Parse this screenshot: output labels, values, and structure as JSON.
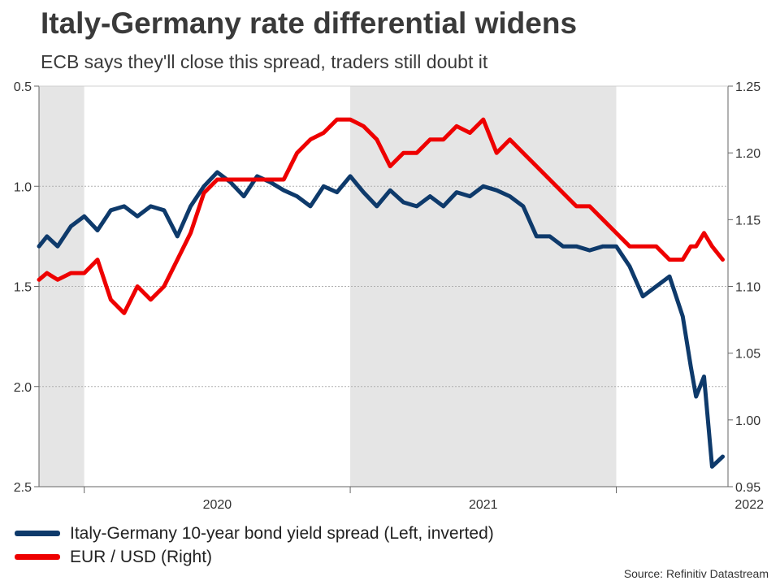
{
  "chart_data": {
    "type": "line",
    "title": "Italy-Germany rate differential widens",
    "subtitle": "ECB says they'll close this spread, traders still doubt it",
    "source": "Source: Refinitiv Datastream",
    "x_start": "2019-11",
    "x_end": "2022-06",
    "x_tick_labels": [
      {
        "label": "2020",
        "pos": 2020.5
      },
      {
        "label": "2021",
        "pos": 2021.5
      },
      {
        "label": "2022",
        "pos": 2022.5
      }
    ],
    "year_boundaries": [
      2020.0,
      2021.0,
      2022.0
    ],
    "shaded_ranges": [
      [
        2019.83,
        2020.0
      ],
      [
        2021.0,
        2022.0
      ]
    ],
    "left_axis": {
      "label": "Italy-Germany 10-year bond yield spread",
      "inverted": true,
      "ylim": [
        0.5,
        2.5
      ],
      "ticks": [
        0.5,
        1.0,
        1.5,
        2.0,
        2.5
      ],
      "tick_labels": [
        "0.5",
        "1.0",
        "1.5",
        "2.0",
        "2.5"
      ]
    },
    "right_axis": {
      "label": "EUR / USD",
      "ylim": [
        0.95,
        1.25
      ],
      "ticks": [
        0.95,
        1.0,
        1.05,
        1.1,
        1.15,
        1.2,
        1.25
      ],
      "tick_labels": [
        "0.95",
        "1.00",
        "1.05",
        "1.10",
        "1.15",
        "1.20",
        "1.25"
      ]
    },
    "series": [
      {
        "name": "Italy-Germany 10-year bond yield spread (Left, inverted)",
        "axis": "left",
        "color": "#0e3a6b",
        "x": [
          2019.83,
          2019.86,
          2019.9,
          2019.95,
          2020.0,
          2020.05,
          2020.1,
          2020.15,
          2020.2,
          2020.25,
          2020.3,
          2020.35,
          2020.4,
          2020.45,
          2020.5,
          2020.55,
          2020.6,
          2020.65,
          2020.7,
          2020.75,
          2020.8,
          2020.85,
          2020.9,
          2020.95,
          2021.0,
          2021.05,
          2021.1,
          2021.15,
          2021.2,
          2021.25,
          2021.3,
          2021.35,
          2021.4,
          2021.45,
          2021.5,
          2021.55,
          2021.6,
          2021.65,
          2021.7,
          2021.75,
          2021.8,
          2021.85,
          2021.9,
          2021.95,
          2022.0,
          2022.05,
          2022.1,
          2022.15,
          2022.2,
          2022.25,
          2022.28,
          2022.3,
          2022.33,
          2022.36,
          2022.4
        ],
        "values": [
          1.3,
          1.25,
          1.3,
          1.2,
          1.15,
          1.22,
          1.12,
          1.1,
          1.15,
          1.1,
          1.12,
          1.25,
          1.1,
          1.0,
          0.93,
          0.98,
          1.05,
          0.95,
          0.98,
          1.02,
          1.05,
          1.1,
          1.0,
          1.03,
          0.95,
          1.03,
          1.1,
          1.02,
          1.08,
          1.1,
          1.05,
          1.1,
          1.03,
          1.05,
          1.0,
          1.02,
          1.05,
          1.1,
          1.25,
          1.25,
          1.3,
          1.3,
          1.32,
          1.3,
          1.3,
          1.4,
          1.55,
          1.5,
          1.45,
          1.65,
          1.9,
          2.05,
          1.95,
          2.4,
          2.35
        ]
      },
      {
        "name": "EUR / USD (Right)",
        "axis": "right",
        "color": "#ee0000",
        "x": [
          2019.83,
          2019.86,
          2019.9,
          2019.95,
          2020.0,
          2020.05,
          2020.1,
          2020.15,
          2020.2,
          2020.25,
          2020.3,
          2020.35,
          2020.4,
          2020.45,
          2020.5,
          2020.55,
          2020.6,
          2020.65,
          2020.7,
          2020.75,
          2020.8,
          2020.85,
          2020.9,
          2020.95,
          2021.0,
          2021.05,
          2021.1,
          2021.15,
          2021.2,
          2021.25,
          2021.3,
          2021.35,
          2021.4,
          2021.45,
          2021.5,
          2021.55,
          2021.6,
          2021.65,
          2021.7,
          2021.75,
          2021.8,
          2021.85,
          2021.9,
          2021.95,
          2022.0,
          2022.05,
          2022.1,
          2022.15,
          2022.2,
          2022.25,
          2022.28,
          2022.3,
          2022.33,
          2022.36,
          2022.4
        ],
        "values": [
          1.105,
          1.11,
          1.105,
          1.11,
          1.11,
          1.12,
          1.09,
          1.08,
          1.1,
          1.09,
          1.1,
          1.12,
          1.14,
          1.17,
          1.18,
          1.18,
          1.18,
          1.18,
          1.18,
          1.18,
          1.2,
          1.21,
          1.215,
          1.225,
          1.225,
          1.22,
          1.21,
          1.19,
          1.2,
          1.2,
          1.21,
          1.21,
          1.22,
          1.215,
          1.225,
          1.2,
          1.21,
          1.2,
          1.19,
          1.18,
          1.17,
          1.16,
          1.16,
          1.15,
          1.14,
          1.13,
          1.13,
          1.13,
          1.12,
          1.12,
          1.13,
          1.13,
          1.14,
          1.13,
          1.12
        ]
      }
    ]
  },
  "legend": {
    "items": [
      {
        "label": "Italy-Germany 10-year bond yield spread (Left, inverted)",
        "color": "#0e3a6b"
      },
      {
        "label": "EUR / USD (Right)",
        "color": "#ee0000"
      }
    ]
  }
}
